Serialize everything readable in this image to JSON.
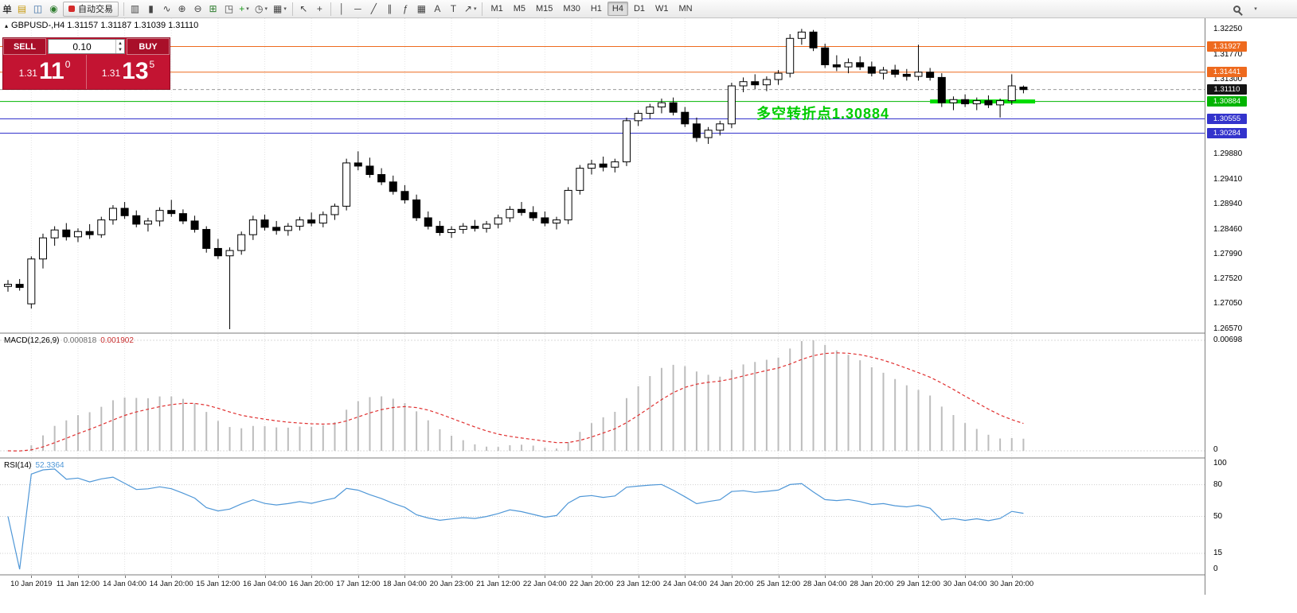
{
  "toolbar": {
    "left_text": "单",
    "autotrading_label": "自动交易",
    "timeframes": [
      "M1",
      "M5",
      "M15",
      "M30",
      "H1",
      "H4",
      "D1",
      "W1",
      "MN"
    ],
    "active_timeframe": "H4",
    "icon_groups": {
      "sys": [
        {
          "name": "new-order-icon",
          "glyph": "▤",
          "color": "#c79a10"
        },
        {
          "name": "chart-window-icon",
          "glyph": "◫",
          "color": "#3a6ea5"
        },
        {
          "name": "navigator-icon",
          "glyph": "◉",
          "color": "#2f7d2f"
        }
      ],
      "chart_types": [
        {
          "name": "bar-chart-icon",
          "glyph": "▥"
        },
        {
          "name": "candlestick-icon",
          "glyph": "▮"
        },
        {
          "name": "line-chart-icon",
          "glyph": "∿"
        }
      ],
      "zoom": [
        {
          "name": "zoom-in-icon",
          "glyph": "⊕"
        },
        {
          "name": "zoom-out-icon",
          "glyph": "⊖"
        }
      ],
      "windows": [
        {
          "name": "tile-windows-icon",
          "glyph": "⊞",
          "color": "#2f7d2f"
        },
        {
          "name": "cascade-windows-icon",
          "glyph": "◳"
        }
      ],
      "dropdowns": [
        {
          "name": "indicators-icon",
          "glyph": "+",
          "color": "#1d9b1d",
          "caret": true
        },
        {
          "name": "periods-icon",
          "glyph": "◷",
          "caret": true
        },
        {
          "name": "templates-icon",
          "glyph": "▦",
          "caret": true
        }
      ],
      "cursor": [
        {
          "name": "cursor-icon",
          "glyph": "↖"
        },
        {
          "name": "crosshair-icon",
          "glyph": "+"
        }
      ],
      "draw": [
        {
          "name": "vertical-line-icon",
          "glyph": "│"
        },
        {
          "name": "horizontal-line-icon",
          "glyph": "─"
        },
        {
          "name": "trendline-icon",
          "glyph": "╱"
        },
        {
          "name": "channel-icon",
          "glyph": "∥"
        },
        {
          "name": "fibonacci-icon",
          "glyph": "ƒ"
        },
        {
          "name": "grid-icon",
          "glyph": "▦"
        },
        {
          "name": "text-icon",
          "glyph": "A"
        },
        {
          "name": "label-icon",
          "glyph": "T"
        },
        {
          "name": "shapes-icon",
          "glyph": "↗",
          "caret": true
        }
      ]
    }
  },
  "symbol_header": "GBPUSD-,H4  1.31157 1.31187 1.31039 1.31110",
  "trade_panel": {
    "sell_label": "SELL",
    "buy_label": "BUY",
    "volume": "0.10",
    "sell_price": {
      "head": "1.31",
      "big": "11",
      "sup": "0"
    },
    "buy_price": {
      "head": "1.31",
      "big": "13",
      "sup": "5"
    }
  },
  "annotation": {
    "text": "多空转折点1.30884",
    "color": "#00cc00"
  },
  "chart_data": {
    "type": "candlestick",
    "symbol": "GBPUSD-",
    "period": "H4",
    "ohlc_current": {
      "open": "1.31157",
      "high": "1.31187",
      "low": "1.31039",
      "close": "1.31110"
    },
    "price_axis_range": {
      "top": 1.3225,
      "bottom": 1.2657
    },
    "price_axis_ticks": [
      "1.32250",
      "1.31770",
      "1.31300",
      "1.29880",
      "1.29410",
      "1.28940",
      "1.28460",
      "1.27990",
      "1.27520",
      "1.27050",
      "1.26570"
    ],
    "levels": [
      {
        "value": "1.31927",
        "price": 1.31927,
        "color": "#ee6a1e",
        "type": "resistance-1"
      },
      {
        "value": "1.31441",
        "price": 1.31441,
        "color": "#ee6a1e",
        "type": "resistance-2"
      },
      {
        "value": "1.31110",
        "price": 1.3111,
        "color": "#141414",
        "type": "current-price"
      },
      {
        "value": "1.30884",
        "price": 1.30884,
        "color": "#00b400",
        "type": "pivot"
      },
      {
        "value": "1.30555",
        "price": 1.30555,
        "color": "#3333cc",
        "type": "support-1"
      },
      {
        "value": "1.30284",
        "price": 1.30284,
        "color": "#3333cc",
        "type": "support-2"
      }
    ],
    "highlight_segment": {
      "price": 1.30884,
      "from_bar": 79,
      "to_bar": 88,
      "color": "#00dd00"
    },
    "candles": [
      [
        1.2738,
        1.275,
        1.2728,
        1.2742
      ],
      [
        1.2742,
        1.2752,
        1.273,
        1.2736
      ],
      [
        1.2705,
        1.2795,
        1.2696,
        1.279
      ],
      [
        1.279,
        1.2838,
        1.2772,
        1.283
      ],
      [
        1.283,
        1.2852,
        1.2815,
        1.2845
      ],
      [
        1.2845,
        1.2858,
        1.2825,
        1.2832
      ],
      [
        1.2832,
        1.2848,
        1.2822,
        1.2842
      ],
      [
        1.2842,
        1.2856,
        1.2828,
        1.2836
      ],
      [
        1.2836,
        1.287,
        1.283,
        1.2864
      ],
      [
        1.2864,
        1.2892,
        1.2855,
        1.2886
      ],
      [
        1.2886,
        1.2898,
        1.2866,
        1.2872
      ],
      [
        1.2872,
        1.2882,
        1.285,
        1.2856
      ],
      [
        1.2856,
        1.2868,
        1.2842,
        1.2862
      ],
      [
        1.2862,
        1.2888,
        1.2852,
        1.2882
      ],
      [
        1.2882,
        1.2902,
        1.287,
        1.2876
      ],
      [
        1.2876,
        1.2884,
        1.2856,
        1.2862
      ],
      [
        1.2862,
        1.2872,
        1.284,
        1.2846
      ],
      [
        1.2846,
        1.2852,
        1.2802,
        1.281
      ],
      [
        1.281,
        1.2828,
        1.279,
        1.2796
      ],
      [
        1.2796,
        1.2812,
        1.2657,
        1.2806
      ],
      [
        1.2806,
        1.2842,
        1.2798,
        1.2836
      ],
      [
        1.2836,
        1.2872,
        1.2826,
        1.2864
      ],
      [
        1.2864,
        1.2874,
        1.2844,
        1.285
      ],
      [
        1.285,
        1.2862,
        1.2836,
        1.2844
      ],
      [
        1.2844,
        1.2858,
        1.2834,
        1.2852
      ],
      [
        1.2852,
        1.287,
        1.2844,
        1.2864
      ],
      [
        1.2864,
        1.2878,
        1.2852,
        1.2858
      ],
      [
        1.2858,
        1.288,
        1.285,
        1.2874
      ],
      [
        1.2874,
        1.2895,
        1.2864,
        1.289
      ],
      [
        1.289,
        1.298,
        1.2882,
        1.2972
      ],
      [
        1.2972,
        1.2994,
        1.2958,
        1.2966
      ],
      [
        1.2966,
        1.2982,
        1.2944,
        1.295
      ],
      [
        1.295,
        1.2962,
        1.293,
        1.2936
      ],
      [
        1.2936,
        1.2948,
        1.2912,
        1.2918
      ],
      [
        1.2918,
        1.293,
        1.2895,
        1.2902
      ],
      [
        1.2902,
        1.2912,
        1.2862,
        1.2868
      ],
      [
        1.2868,
        1.288,
        1.2846,
        1.2852
      ],
      [
        1.2852,
        1.2862,
        1.2834,
        1.284
      ],
      [
        1.284,
        1.2852,
        1.283,
        1.2846
      ],
      [
        1.2846,
        1.2858,
        1.2838,
        1.2852
      ],
      [
        1.2852,
        1.2864,
        1.2842,
        1.2848
      ],
      [
        1.2848,
        1.2862,
        1.284,
        1.2856
      ],
      [
        1.2856,
        1.2874,
        1.2848,
        1.2868
      ],
      [
        1.2868,
        1.289,
        1.286,
        1.2884
      ],
      [
        1.2884,
        1.2898,
        1.2872,
        1.2878
      ],
      [
        1.2878,
        1.289,
        1.2862,
        1.2868
      ],
      [
        1.2868,
        1.288,
        1.2852,
        1.2858
      ],
      [
        1.2858,
        1.287,
        1.2846,
        1.2864
      ],
      [
        1.2864,
        1.2926,
        1.2856,
        1.292
      ],
      [
        1.292,
        1.2968,
        1.2912,
        1.2962
      ],
      [
        1.2962,
        1.2978,
        1.295,
        1.297
      ],
      [
        1.297,
        1.2984,
        1.2956,
        1.2964
      ],
      [
        1.2964,
        1.298,
        1.2954,
        1.2974
      ],
      [
        1.2974,
        1.3058,
        1.2966,
        1.3052
      ],
      [
        1.3052,
        1.3072,
        1.3042,
        1.3066
      ],
      [
        1.3066,
        1.3084,
        1.3056,
        1.3078
      ],
      [
        1.3078,
        1.3094,
        1.3066,
        1.3086
      ],
      [
        1.3086,
        1.3096,
        1.3062,
        1.3068
      ],
      [
        1.3068,
        1.3078,
        1.304,
        1.3046
      ],
      [
        1.3046,
        1.3058,
        1.3012,
        1.302
      ],
      [
        1.302,
        1.304,
        1.3008,
        1.3034
      ],
      [
        1.3034,
        1.3052,
        1.3024,
        1.3046
      ],
      [
        1.3046,
        1.3124,
        1.3038,
        1.3118
      ],
      [
        1.3118,
        1.3134,
        1.3106,
        1.3126
      ],
      [
        1.3126,
        1.314,
        1.3112,
        1.312
      ],
      [
        1.312,
        1.3136,
        1.3108,
        1.313
      ],
      [
        1.313,
        1.3148,
        1.312,
        1.3142
      ],
      [
        1.3142,
        1.3216,
        1.3134,
        1.3208
      ],
      [
        1.3208,
        1.3226,
        1.3196,
        1.322
      ],
      [
        1.322,
        1.3224,
        1.3184,
        1.319
      ],
      [
        1.319,
        1.3198,
        1.3152,
        1.3158
      ],
      [
        1.3158,
        1.3176,
        1.3146,
        1.3154
      ],
      [
        1.3154,
        1.317,
        1.3142,
        1.3162
      ],
      [
        1.3162,
        1.3174,
        1.3148,
        1.3154
      ],
      [
        1.3154,
        1.3164,
        1.3136,
        1.3142
      ],
      [
        1.3142,
        1.3154,
        1.313,
        1.3148
      ],
      [
        1.3148,
        1.3158,
        1.3134,
        1.314
      ],
      [
        1.314,
        1.315,
        1.3128,
        1.3136
      ],
      [
        1.3136,
        1.3196,
        1.3128,
        1.3144
      ],
      [
        1.3144,
        1.3152,
        1.3128,
        1.3134
      ],
      [
        1.3134,
        1.3142,
        1.3078,
        1.3086
      ],
      [
        1.3086,
        1.3098,
        1.3072,
        1.3092
      ],
      [
        1.3092,
        1.3102,
        1.3078,
        1.3084
      ],
      [
        1.3084,
        1.3096,
        1.3072,
        1.309
      ],
      [
        1.309,
        1.31,
        1.3076,
        1.3082
      ],
      [
        1.3082,
        1.3094,
        1.3058,
        1.309
      ],
      [
        1.309,
        1.314,
        1.3082,
        1.3118
      ],
      [
        1.31157,
        1.31187,
        1.31039,
        1.3111
      ]
    ],
    "time_labels": [
      "10 Jan 2019",
      "11 Jan 12:00",
      "14 Jan 04:00",
      "14 Jan 20:00",
      "15 Jan 12:00",
      "16 Jan 04:00",
      "16 Jan 20:00",
      "17 Jan 12:00",
      "18 Jan 04:00",
      "20 Jan 23:00",
      "21 Jan 12:00",
      "22 Jan 04:00",
      "22 Jan 20:00",
      "23 Jan 12:00",
      "24 Jan 04:00",
      "24 Jan 20:00",
      "25 Jan 12:00",
      "28 Jan 04:00",
      "28 Jan 20:00",
      "29 Jan 12:00",
      "30 Jan 04:00",
      "30 Jan 20:00"
    ],
    "macd": {
      "label": "MACD(12,26,9)",
      "value_main": "0.000818",
      "value_signal": "0.001902",
      "params": [
        12,
        26,
        9
      ],
      "axis_max_label": "0.00698",
      "axis_min_label": "0",
      "bar_color": "#bdbdbd",
      "signal_color": "#e03030"
    },
    "rsi": {
      "label": "RSI(14)",
      "value": "52.3364",
      "period": 14,
      "axis_labels": [
        "100",
        "80",
        "50",
        "15",
        "0"
      ],
      "axis_values": [
        100,
        80,
        50,
        15,
        0
      ],
      "grid_levels": [
        80,
        50,
        15
      ],
      "line_color": "#4f97d7"
    }
  }
}
